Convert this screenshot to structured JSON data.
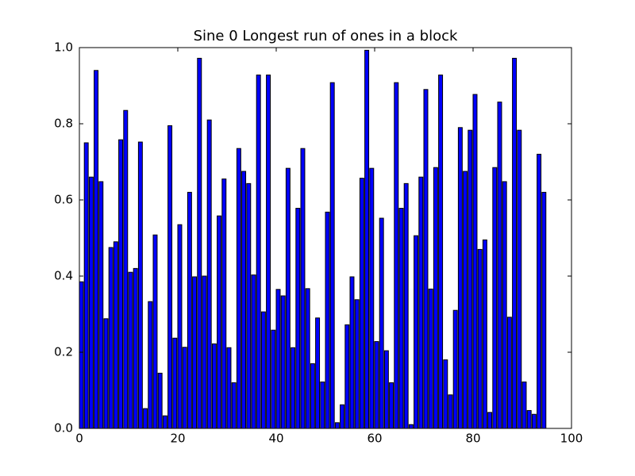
{
  "chart_data": {
    "type": "bar",
    "title": "Sine 0 Longest run of ones in a block",
    "x": [
      0,
      1,
      2,
      3,
      4,
      5,
      6,
      7,
      8,
      9,
      10,
      11,
      12,
      13,
      14,
      15,
      16,
      17,
      18,
      19,
      20,
      21,
      22,
      23,
      24,
      25,
      26,
      27,
      28,
      29,
      30,
      31,
      32,
      33,
      34,
      35,
      36,
      37,
      38,
      39,
      40,
      41,
      42,
      43,
      44,
      45,
      46,
      47,
      48,
      49,
      50,
      51,
      52,
      53,
      54,
      55,
      56,
      57,
      58,
      59,
      60,
      61,
      62,
      63,
      64,
      65,
      66,
      67,
      68,
      69,
      70,
      71,
      72,
      73,
      74,
      75,
      76,
      77,
      78,
      79,
      80,
      81,
      82,
      83,
      84,
      85,
      86,
      87,
      88,
      89,
      90,
      91,
      92,
      93,
      94
    ],
    "values": [
      0.385,
      0.75,
      0.66,
      0.94,
      0.648,
      0.288,
      0.475,
      0.49,
      0.758,
      0.835,
      0.41,
      0.42,
      0.752,
      0.052,
      0.333,
      0.508,
      0.145,
      0.033,
      0.795,
      0.237,
      0.535,
      0.213,
      0.62,
      0.398,
      0.972,
      0.4,
      0.81,
      0.222,
      0.558,
      0.655,
      0.212,
      0.12,
      0.735,
      0.675,
      0.643,
      0.403,
      0.928,
      0.306,
      0.928,
      0.258,
      0.365,
      0.348,
      0.683,
      0.212,
      0.578,
      0.735,
      0.367,
      0.17,
      0.29,
      0.122,
      0.568,
      0.908,
      0.015,
      0.062,
      0.272,
      0.398,
      0.338,
      0.657,
      0.993,
      0.683,
      0.228,
      0.552,
      0.204,
      0.12,
      0.908,
      0.578,
      0.643,
      0.01,
      0.506,
      0.66,
      0.89,
      0.366,
      0.685,
      0.928,
      0.18,
      0.088,
      0.31,
      0.79,
      0.675,
      0.783,
      0.877,
      0.47,
      0.495,
      0.042,
      0.685,
      0.857,
      0.648,
      0.292,
      0.972,
      0.783,
      0.122,
      0.047,
      0.037,
      0.72,
      0.62
    ],
    "color": "#0000ff",
    "xlim": [
      0,
      100
    ],
    "xticks": [
      0,
      20,
      40,
      60,
      80,
      100
    ],
    "ylim": [
      0,
      1
    ],
    "yticks": [
      {
        "value": 0,
        "label": "0.0"
      },
      {
        "value": 0.2,
        "label": "0.2"
      },
      {
        "value": 0.4,
        "label": "0.4"
      },
      {
        "value": 0.6,
        "label": "0.6"
      },
      {
        "value": 0.8,
        "label": "0.8"
      },
      {
        "value": 1,
        "label": "1.0"
      }
    ],
    "grid": false
  }
}
